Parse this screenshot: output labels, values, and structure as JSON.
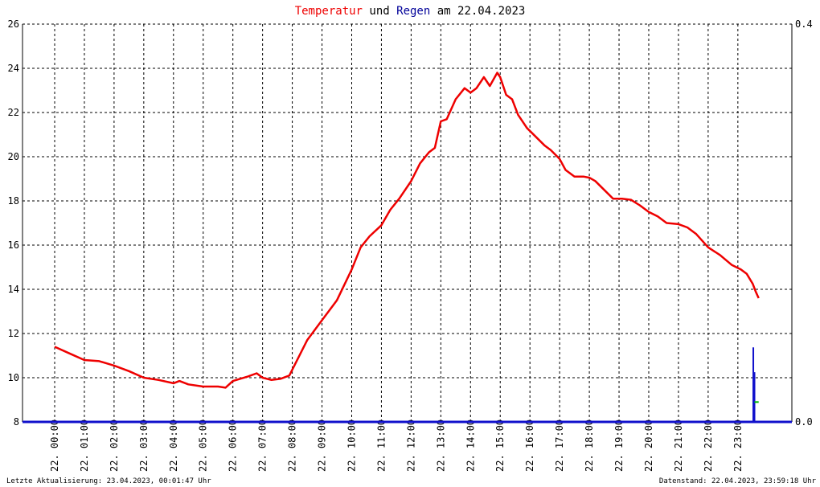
{
  "chart_data": {
    "type": "line",
    "title": {
      "part1": "Temperatur",
      "part2": " und ",
      "part3": "Regen",
      "part4": " am 22.04.2023"
    },
    "colors": {
      "temperature": "#ee0000",
      "rain": "#1010cc",
      "rain_total": "#00bb00",
      "title_temp": "#ee0000",
      "title_rain": "#000099",
      "grid": "#000000"
    },
    "y_left": {
      "min": 8,
      "max": 26,
      "ticks": [
        "8",
        "10",
        "12",
        "14",
        "16",
        "18",
        "20",
        "22",
        "24",
        "26"
      ]
    },
    "y_right": {
      "min": 0.0,
      "max": 0.4,
      "ticks": [
        "0.0",
        "0.4"
      ]
    },
    "x_range_hours": [
      0,
      23.6
    ],
    "x_ticks": [
      {
        "day": "22.",
        "time": "00:00"
      },
      {
        "day": "22.",
        "time": "01:00"
      },
      {
        "day": "22.",
        "time": "02:00"
      },
      {
        "day": "22.",
        "time": "03:00"
      },
      {
        "day": "22.",
        "time": "04:00"
      },
      {
        "day": "22.",
        "time": "05:00"
      },
      {
        "day": "22.",
        "time": "06:00"
      },
      {
        "day": "22.",
        "time": "07:00"
      },
      {
        "day": "22.",
        "time": "08:00"
      },
      {
        "day": "22.",
        "time": "09:00"
      },
      {
        "day": "22.",
        "time": "10:00"
      },
      {
        "day": "22.",
        "time": "11:00"
      },
      {
        "day": "22.",
        "time": "12:00"
      },
      {
        "day": "22.",
        "time": "13:00"
      },
      {
        "day": "22.",
        "time": "14:00"
      },
      {
        "day": "22.",
        "time": "15:00"
      },
      {
        "day": "22.",
        "time": "16:00"
      },
      {
        "day": "22.",
        "time": "17:00"
      },
      {
        "day": "22.",
        "time": "18:00"
      },
      {
        "day": "22.",
        "time": "19:00"
      },
      {
        "day": "22.",
        "time": "20:00"
      },
      {
        "day": "22.",
        "time": "21:00"
      },
      {
        "day": "22.",
        "time": "22:00"
      },
      {
        "day": "22.",
        "time": "23:00"
      }
    ],
    "grid": true,
    "series": [
      {
        "key": "temperature",
        "points": [
          [
            0.0,
            11.4
          ],
          [
            0.5,
            11.1
          ],
          [
            1.0,
            10.8
          ],
          [
            1.5,
            10.75
          ],
          [
            2.0,
            10.55
          ],
          [
            2.5,
            10.3
          ],
          [
            3.0,
            10.0
          ],
          [
            3.5,
            9.9
          ],
          [
            4.0,
            9.75
          ],
          [
            4.2,
            9.85
          ],
          [
            4.5,
            9.7
          ],
          [
            5.0,
            9.6
          ],
          [
            5.5,
            9.6
          ],
          [
            5.75,
            9.55
          ],
          [
            6.0,
            9.85
          ],
          [
            6.5,
            10.05
          ],
          [
            6.8,
            10.2
          ],
          [
            7.0,
            10.0
          ],
          [
            7.3,
            9.9
          ],
          [
            7.6,
            9.95
          ],
          [
            7.9,
            10.1
          ],
          [
            8.2,
            10.9
          ],
          [
            8.5,
            11.7
          ],
          [
            9.0,
            12.6
          ],
          [
            9.5,
            13.5
          ],
          [
            10.0,
            14.9
          ],
          [
            10.3,
            15.9
          ],
          [
            10.6,
            16.4
          ],
          [
            11.0,
            16.9
          ],
          [
            11.3,
            17.6
          ],
          [
            11.6,
            18.1
          ],
          [
            12.0,
            18.9
          ],
          [
            12.3,
            19.7
          ],
          [
            12.6,
            20.2
          ],
          [
            12.8,
            20.4
          ],
          [
            13.0,
            21.6
          ],
          [
            13.2,
            21.7
          ],
          [
            13.5,
            22.6
          ],
          [
            13.8,
            23.1
          ],
          [
            14.0,
            22.9
          ],
          [
            14.2,
            23.1
          ],
          [
            14.45,
            23.6
          ],
          [
            14.65,
            23.2
          ],
          [
            14.9,
            23.8
          ],
          [
            15.0,
            23.6
          ],
          [
            15.2,
            22.8
          ],
          [
            15.4,
            22.6
          ],
          [
            15.6,
            21.9
          ],
          [
            15.9,
            21.3
          ],
          [
            16.2,
            20.9
          ],
          [
            16.5,
            20.5
          ],
          [
            16.7,
            20.3
          ],
          [
            17.0,
            19.9
          ],
          [
            17.2,
            19.4
          ],
          [
            17.5,
            19.1
          ],
          [
            17.8,
            19.1
          ],
          [
            18.0,
            19.05
          ],
          [
            18.2,
            18.9
          ],
          [
            18.5,
            18.5
          ],
          [
            18.8,
            18.1
          ],
          [
            19.1,
            18.1
          ],
          [
            19.4,
            18.05
          ],
          [
            19.7,
            17.8
          ],
          [
            20.0,
            17.5
          ],
          [
            20.3,
            17.3
          ],
          [
            20.6,
            17.0
          ],
          [
            21.0,
            16.95
          ],
          [
            21.3,
            16.8
          ],
          [
            21.6,
            16.5
          ],
          [
            22.0,
            15.9
          ],
          [
            22.4,
            15.55
          ],
          [
            22.8,
            15.1
          ],
          [
            23.1,
            14.9
          ],
          [
            23.3,
            14.7
          ],
          [
            23.5,
            14.25
          ],
          [
            23.6,
            13.9
          ],
          [
            23.7,
            13.6
          ]
        ]
      },
      {
        "key": "rain",
        "bars": [
          [
            23.52,
            0.075
          ],
          [
            23.56,
            0.05
          ]
        ]
      },
      {
        "key": "rain_total",
        "points": [
          [
            23.56,
            0.02
          ],
          [
            23.7,
            0.02
          ]
        ]
      }
    ]
  },
  "footer": {
    "left": "Letzte Aktualisierung: 23.04.2023, 00:01:47 Uhr",
    "right": "Datenstand: 22.04.2023, 23:59:18 Uhr"
  }
}
